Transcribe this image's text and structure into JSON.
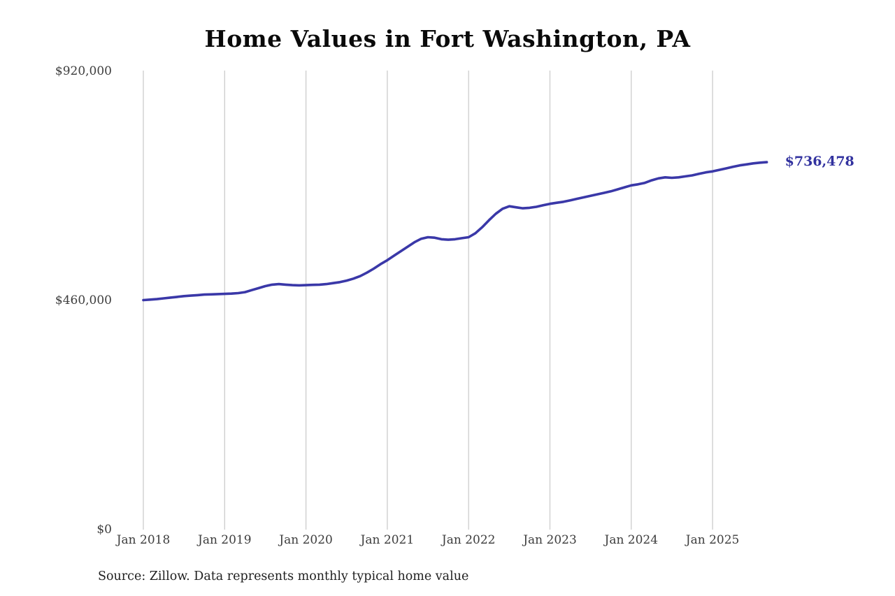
{
  "chart_data": {
    "type": "line",
    "title": "Home Values in Fort Washington, PA",
    "y_ticks": [
      "$0",
      "$460,000",
      "$920,000"
    ],
    "y_tick_values": [
      0,
      460000,
      920000
    ],
    "x_ticks": [
      "Jan 2018",
      "Jan 2019",
      "Jan 2020",
      "Jan 2021",
      "Jan 2022",
      "Jan 2023",
      "Jan 2024",
      "Jan 2025"
    ],
    "ylim": [
      0,
      920000
    ],
    "grid": "vertical-only",
    "legend": "none",
    "end_label": "$736,478",
    "line_color": "#3a38a8",
    "end_label_color": "#32329f",
    "gridline_color": "#cccccc",
    "source": "Source: Zillow. Data represents monthly typical home value",
    "series": [
      {
        "name": "Monthly typical home value",
        "x_start": "Jan 2018",
        "interval": "monthly",
        "values": [
          460000,
          461000,
          462000,
          463500,
          465000,
          466500,
          468000,
          469000,
          470000,
          471000,
          471500,
          472000,
          472500,
          473000,
          474000,
          476000,
          480000,
          484000,
          488000,
          491000,
          492000,
          491000,
          490000,
          489500,
          490000,
          490500,
          491000,
          492000,
          494000,
          496000,
          499000,
          503000,
          508000,
          515000,
          523000,
          532000,
          540000,
          549000,
          558000,
          567000,
          576000,
          583000,
          586000,
          585000,
          582000,
          581000,
          582000,
          584000,
          586000,
          594000,
          606000,
          620000,
          633000,
          643000,
          648000,
          646000,
          644000,
          645000,
          647000,
          650000,
          653000,
          655000,
          657000,
          660000,
          663000,
          666000,
          669000,
          672000,
          675000,
          678000,
          682000,
          686000,
          690000,
          692000,
          695000,
          700000,
          704000,
          706000,
          705000,
          706000,
          708000,
          710000,
          713000,
          716000,
          718000,
          721000,
          724000,
          727000,
          730000,
          732000,
          734000,
          735500,
          736478
        ]
      }
    ]
  }
}
